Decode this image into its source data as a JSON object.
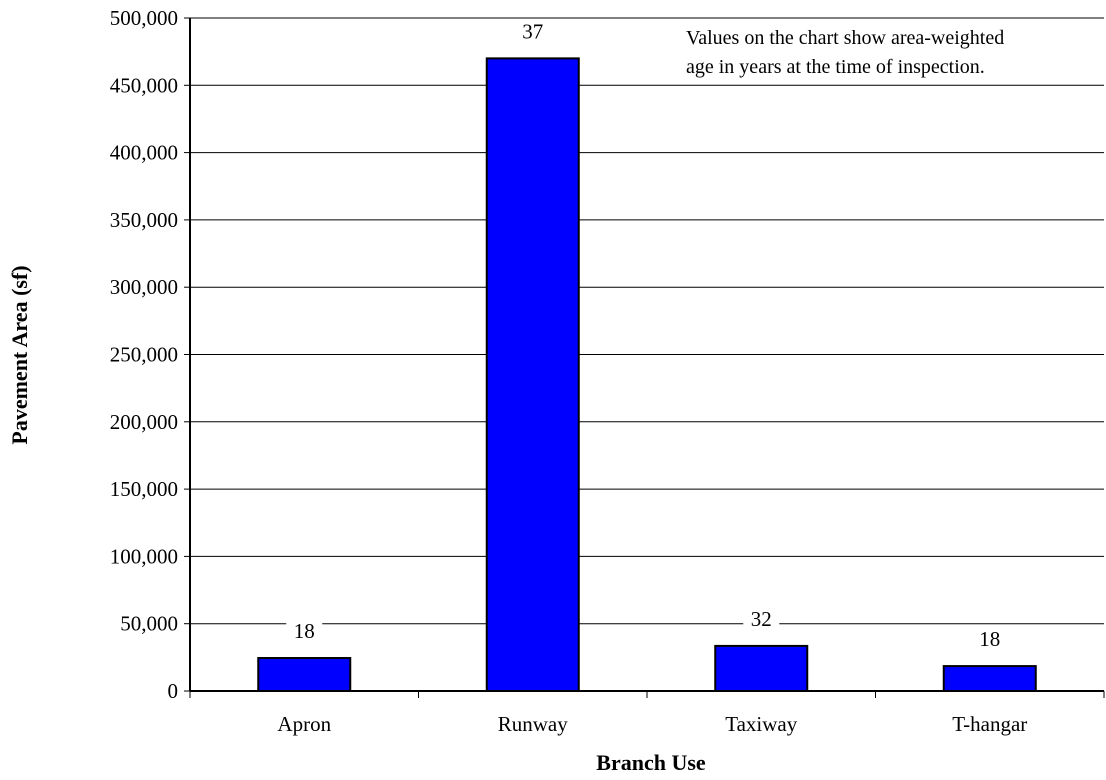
{
  "chart_data": {
    "type": "bar",
    "categories": [
      "Apron",
      "Runway",
      "Taxiway",
      "T-hangar"
    ],
    "values": [
      24500,
      470000,
      33500,
      18500
    ],
    "data_labels": [
      "18",
      "37",
      "32",
      "18"
    ],
    "xlabel": "Branch Use",
    "ylabel": "Pavement Area (sf)",
    "ylim": [
      0,
      500000
    ],
    "yticks": [
      0,
      50000,
      100000,
      150000,
      200000,
      250000,
      300000,
      350000,
      400000,
      450000,
      500000
    ],
    "ytick_labels": [
      "0",
      "50,000",
      "100,000",
      "150,000",
      "200,000",
      "250,000",
      "300,000",
      "350,000",
      "400,000",
      "450,000",
      "500,000"
    ],
    "grid": true,
    "bar_color": "#0000FF",
    "annotation": {
      "line1": "Values on the chart show area-weighted",
      "line2": "age in years at the time of inspection."
    }
  }
}
